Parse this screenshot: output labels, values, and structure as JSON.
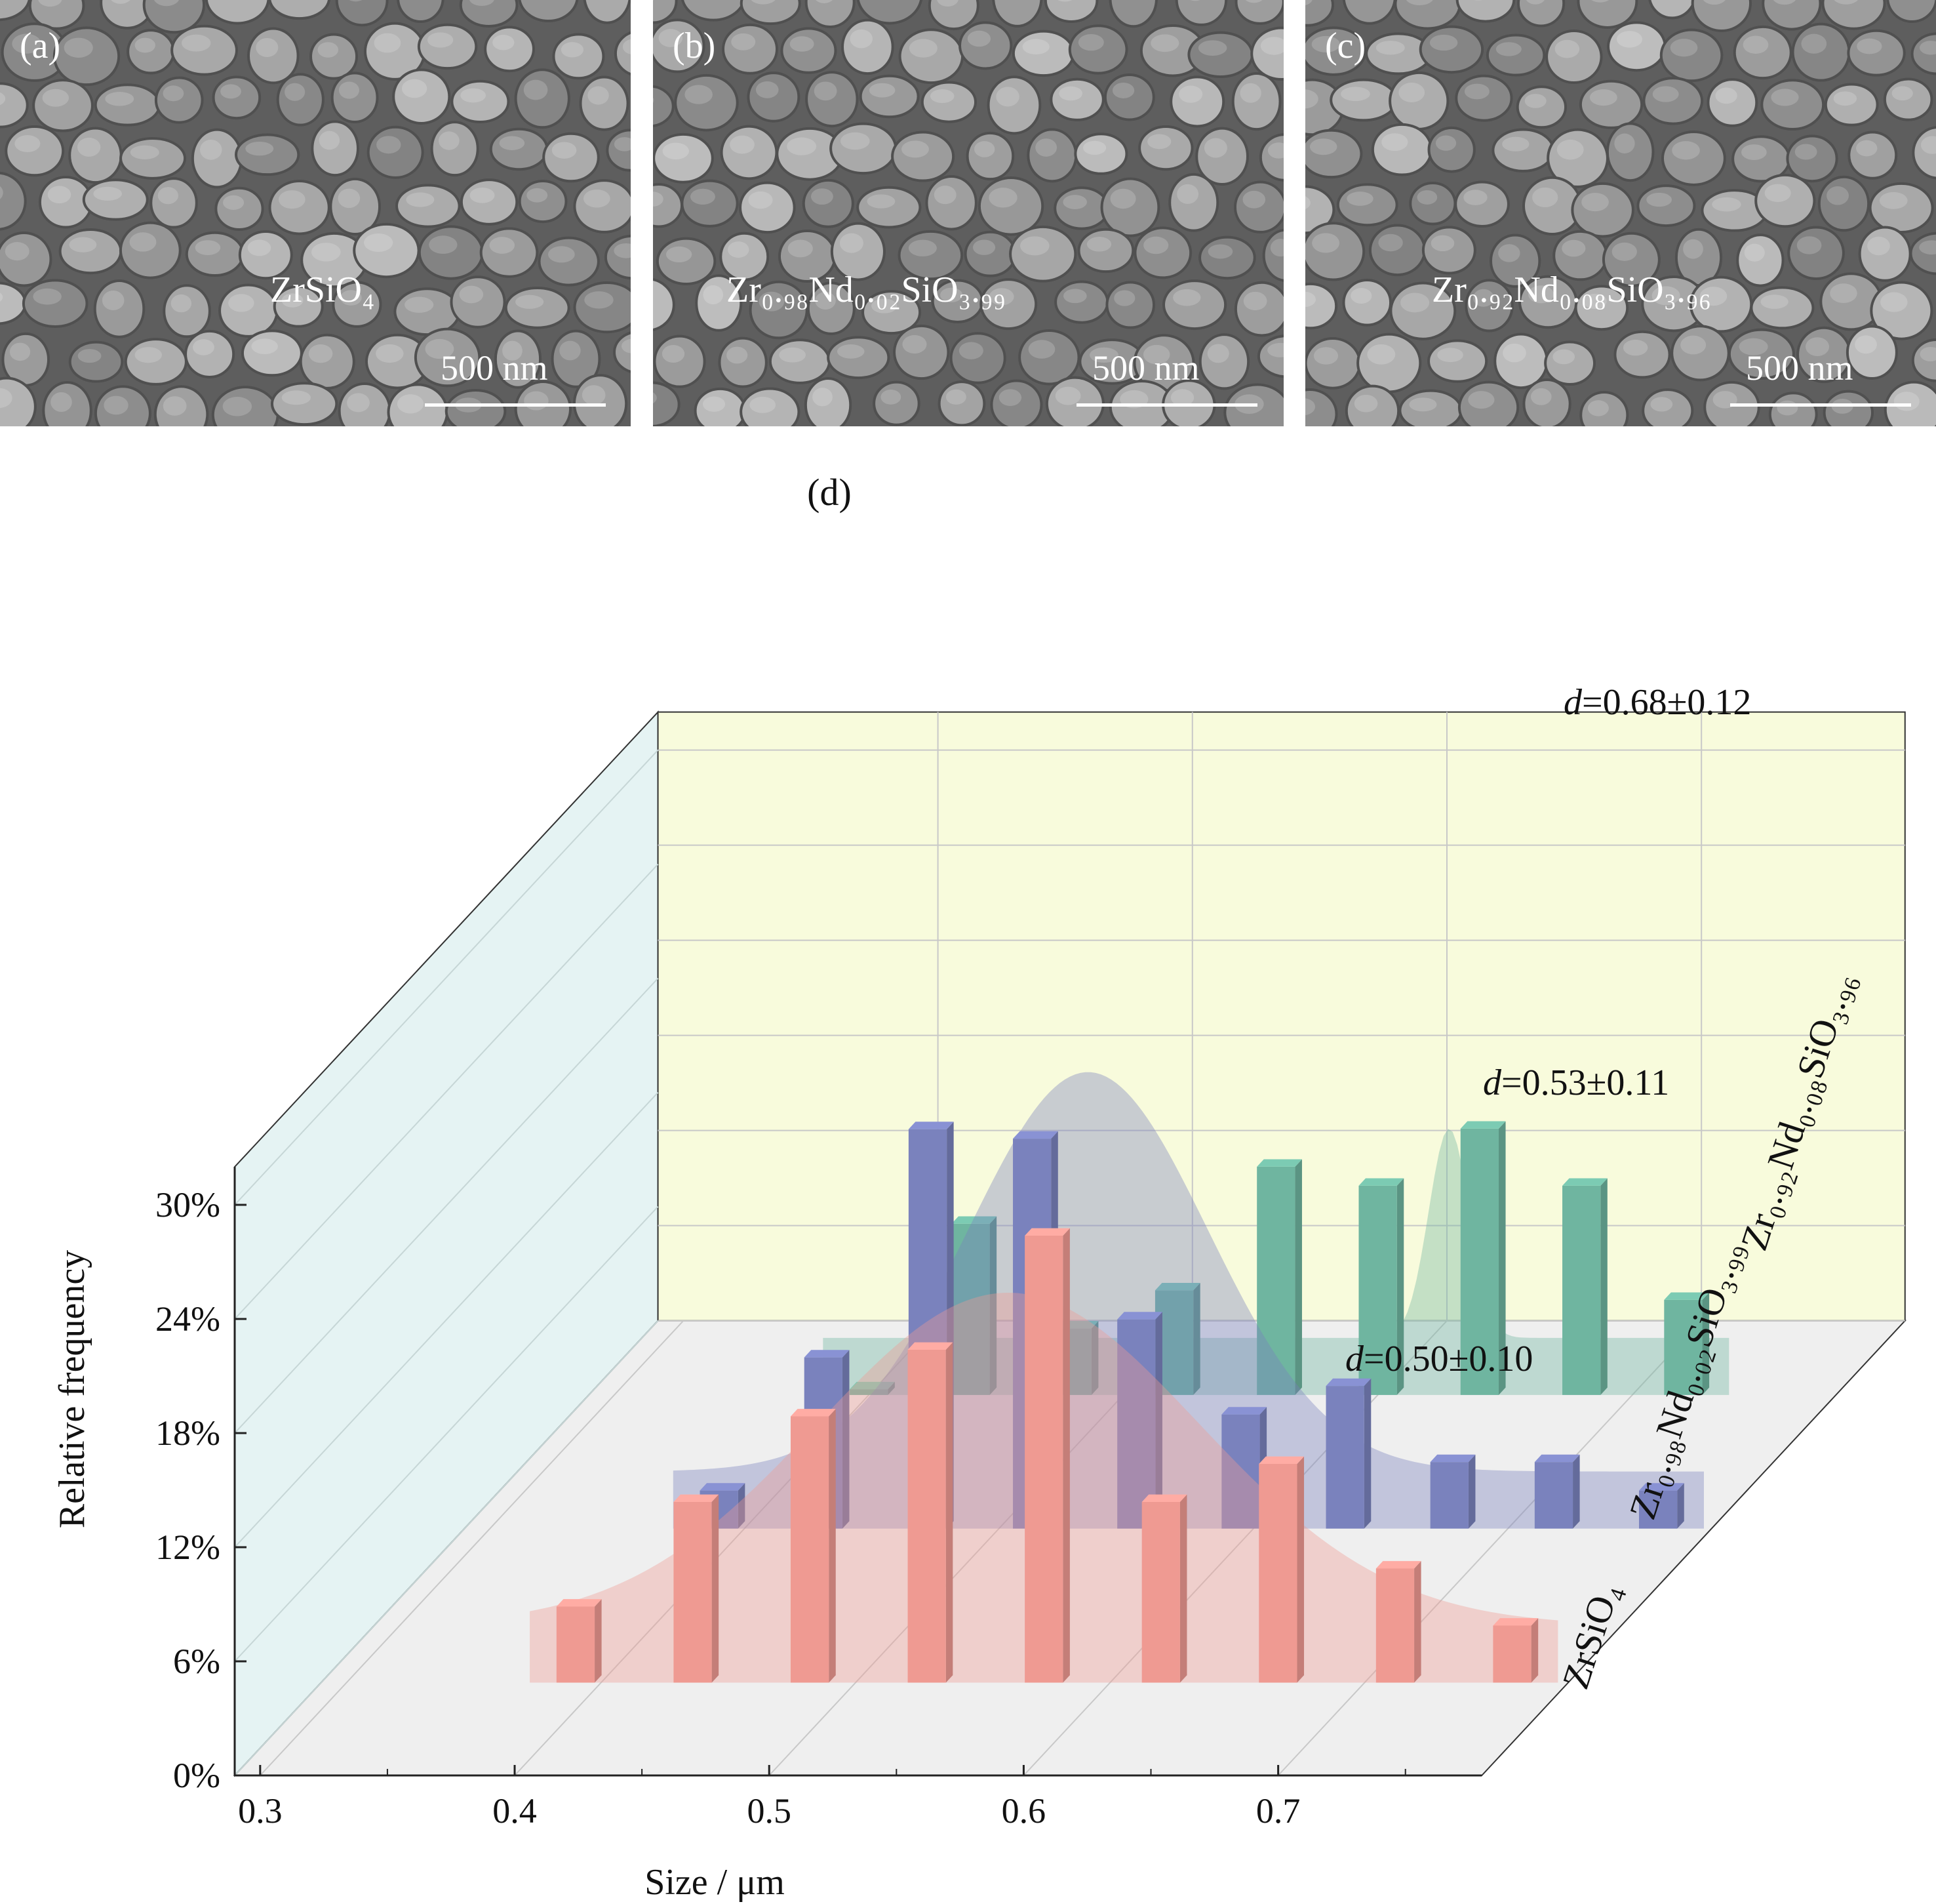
{
  "panels": [
    {
      "letter": "(a)",
      "composition": "ZrSiO₄",
      "scale_label": "500 nm"
    },
    {
      "letter": "(b)",
      "composition": "Zr₀.₉₈Nd₀.₀₂SiO₃.₉₉",
      "scale_label": "500 nm"
    },
    {
      "letter": "(c)",
      "composition": "Zr₀.₉₂Nd₀.₀₈SiO₃.₉₆",
      "scale_label": "500 nm"
    }
  ],
  "chart_data": {
    "type": "bar",
    "panel_label": "(d)",
    "projection": "3d",
    "xlabel": "Size / μm",
    "ylabel": "Relative frequency",
    "x_ticks": [
      "0.3",
      "0.4",
      "0.5",
      "0.6",
      "0.7"
    ],
    "y_ticks": [
      "0%",
      "6%",
      "12%",
      "18%",
      "24%",
      "30%"
    ],
    "xlim": [
      0.29,
      0.78
    ],
    "ylim": [
      0,
      32
    ],
    "colors": {
      "ZrSiO4": "#ef9a92",
      "Zr0.98Nd0.02SiO3.99": "#7a82bd",
      "Zr0.92Nd0.08SiO3.96": "#6fb5a0",
      "back_wall": "#f8fbdc",
      "side_wall": "#e5f3f3",
      "floor": "#efefef"
    },
    "series": [
      {
        "name": "ZrSiO₄",
        "annotation": "d=0.50±0.10",
        "x": [
          0.39,
          0.436,
          0.482,
          0.528,
          0.574,
          0.62,
          0.666,
          0.712,
          0.758
        ],
        "values": [
          4.0,
          9.5,
          14.0,
          17.5,
          23.5,
          9.5,
          11.5,
          6.0,
          3.0
        ]
      },
      {
        "name": "Zr₀.₉₈Nd₀.₀₂SiO₃.₉₉",
        "annotation": "d=0.53±0.11",
        "x": [
          0.39,
          0.431,
          0.472,
          0.513,
          0.554,
          0.595,
          0.636,
          0.677,
          0.718,
          0.759
        ],
        "values": [
          2.0,
          9.0,
          21.0,
          20.5,
          11.0,
          6.0,
          7.5,
          3.5,
          3.5,
          2.0
        ]
      },
      {
        "name": "Zr₀.₉₂Nd₀.₀₈SiO₃.₉₆",
        "annotation": "d=0.68±0.12",
        "x": [
          0.4,
          0.44,
          0.48,
          0.52,
          0.56,
          0.6,
          0.64,
          0.68,
          0.72
        ],
        "values": [
          0.3,
          9.0,
          3.5,
          5.5,
          12.0,
          11.0,
          14.0,
          11.0,
          5.0
        ]
      }
    ]
  }
}
